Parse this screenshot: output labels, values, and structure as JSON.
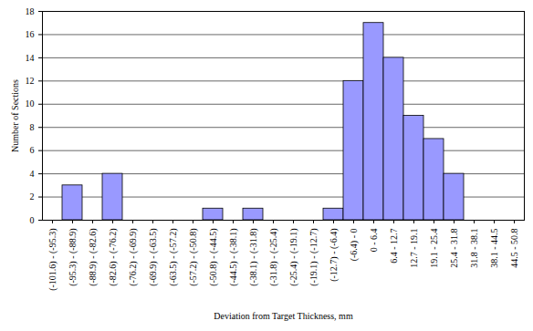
{
  "chart_data": {
    "type": "bar",
    "x_label": "Deviation from Target Thickness, mm",
    "y_label": "Number of Sections",
    "categories": [
      "(-101.6) - (-95.3)",
      "(-95.3) - (-88.9)",
      "(-88.9) - (-82.6)",
      "(-82.6) - (-76.2)",
      "(-76.2) - (-69.9)",
      "(-69.9) - (-63.5)",
      "(-63.5) - (-57.2)",
      "(-57.2) - (-50.8)",
      "(-50.8) - (-44.5)",
      "(-44.5) - (-38.1)",
      "(-38.1) - (-31.8)",
      "(-31.8) - (-25.4)",
      "(-25.4) - (-19.1)",
      "(-19.1) - (-12.7)",
      "(-12.7) - (-6.4)",
      "(-6.4) - 0",
      "0 - 6.4",
      "6.4 - 12.7",
      "12.7 - 19.1",
      "19.1 - 25.4",
      "25.4 - 31.8",
      "31.8 - 38.1",
      "38.1 - 44.5",
      "44.5 - 50.8"
    ],
    "values": [
      0,
      3,
      0,
      4,
      0,
      0,
      0,
      0,
      1,
      0,
      1,
      0,
      0,
      0,
      1,
      12,
      17,
      14,
      9,
      7,
      4,
      0,
      0,
      0
    ],
    "color": "#9999ff",
    "ylim": [
      0,
      18
    ],
    "yticks": [
      0,
      2,
      4,
      6,
      8,
      10,
      12,
      14,
      16,
      18
    ],
    "grid": true
  }
}
